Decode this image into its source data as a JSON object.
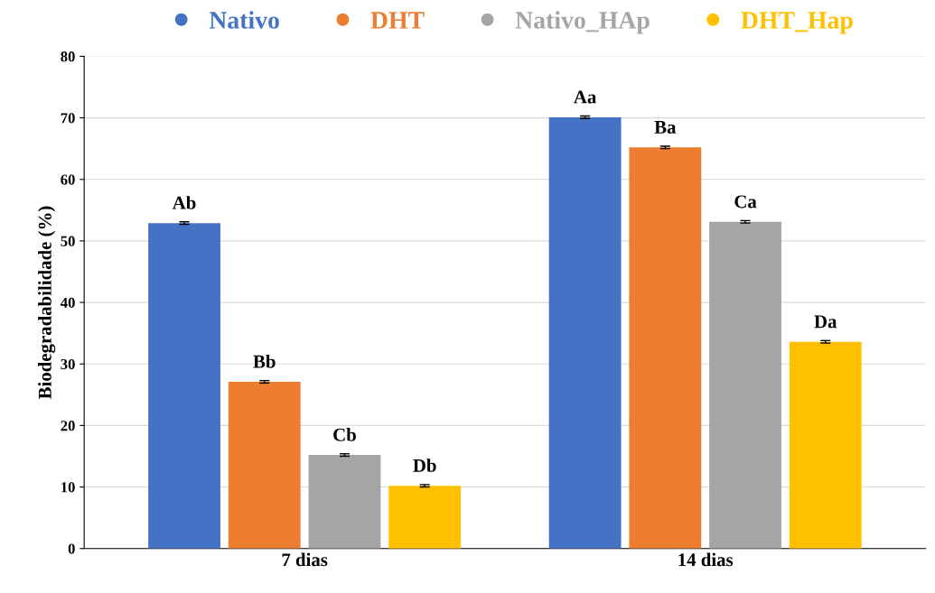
{
  "chart_data": {
    "type": "bar",
    "ylabel": "Biodegradabilidade (%)",
    "categories": [
      "7 dias",
      "14 dias"
    ],
    "series": [
      {
        "name": "Nativo",
        "color": "#4472c4",
        "values": [
          52.9,
          70.1
        ],
        "errors": [
          0.2,
          0.2
        ],
        "value_labels": [
          "Ab",
          "Aa"
        ]
      },
      {
        "name": "DHT",
        "color": "#ed7d31",
        "values": [
          27.1,
          65.2
        ],
        "errors": [
          0.2,
          0.2
        ],
        "value_labels": [
          "Bb",
          "Ba"
        ]
      },
      {
        "name": "Nativo_HAp",
        "color": "#a5a5a5",
        "values": [
          15.2,
          53.1
        ],
        "errors": [
          0.2,
          0.2
        ],
        "value_labels": [
          "Cb",
          "Ca"
        ]
      },
      {
        "name": "DHT_Hap",
        "color": "#ffc000",
        "values": [
          10.2,
          33.6
        ],
        "errors": [
          0.2,
          0.2
        ],
        "value_labels": [
          "Db",
          "Da"
        ]
      }
    ],
    "ylim": [
      0,
      80
    ],
    "yticks": [
      0,
      10,
      20,
      30,
      40,
      50,
      60,
      70,
      80
    ],
    "grid": "y",
    "legend": "top"
  }
}
